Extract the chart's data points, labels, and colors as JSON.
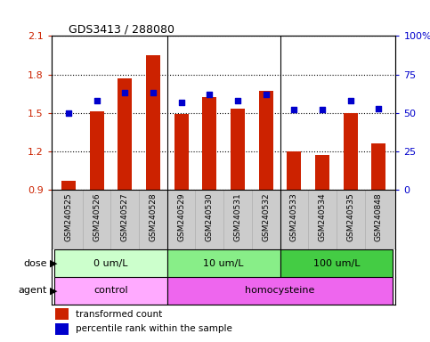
{
  "title": "GDS3413 / 288080",
  "samples": [
    "GSM240525",
    "GSM240526",
    "GSM240527",
    "GSM240528",
    "GSM240529",
    "GSM240530",
    "GSM240531",
    "GSM240532",
    "GSM240533",
    "GSM240534",
    "GSM240535",
    "GSM240848"
  ],
  "bar_values": [
    0.97,
    1.51,
    1.77,
    1.95,
    1.49,
    1.62,
    1.53,
    1.67,
    1.2,
    1.17,
    1.5,
    1.26
  ],
  "bar_bottom": 0.9,
  "percentile_values": [
    50,
    58,
    63,
    63,
    57,
    62,
    58,
    62,
    52,
    52,
    58,
    53
  ],
  "ylim_left": [
    0.9,
    2.1
  ],
  "ylim_right": [
    0,
    100
  ],
  "yticks_left": [
    0.9,
    1.2,
    1.5,
    1.8,
    2.1
  ],
  "yticks_right": [
    0,
    25,
    50,
    75,
    100
  ],
  "ytick_labels_left": [
    "0.9",
    "1.2",
    "1.5",
    "1.8",
    "2.1"
  ],
  "ytick_labels_right": [
    "0",
    "25",
    "50",
    "75",
    "100%"
  ],
  "bar_color": "#cc2200",
  "dot_color": "#0000cc",
  "plot_bg": "#ffffff",
  "xlabel_bg": "#cccccc",
  "dose_groups": [
    {
      "label": "0 um/L",
      "start": 0,
      "end": 4,
      "color": "#ccffcc"
    },
    {
      "label": "10 um/L",
      "start": 4,
      "end": 8,
      "color": "#88ee88"
    },
    {
      "label": "100 um/L",
      "start": 8,
      "end": 12,
      "color": "#44cc44"
    }
  ],
  "agent_groups": [
    {
      "label": "control",
      "start": 0,
      "end": 4,
      "color": "#ffaaff"
    },
    {
      "label": "homocysteine",
      "start": 4,
      "end": 12,
      "color": "#ee66ee"
    }
  ],
  "dose_label": "dose",
  "agent_label": "agent",
  "legend_bar_label": "transformed count",
  "legend_dot_label": "percentile rank within the sample",
  "left_axis_color": "#cc2200",
  "right_axis_color": "#0000cc",
  "group_boundaries": [
    4,
    8
  ]
}
